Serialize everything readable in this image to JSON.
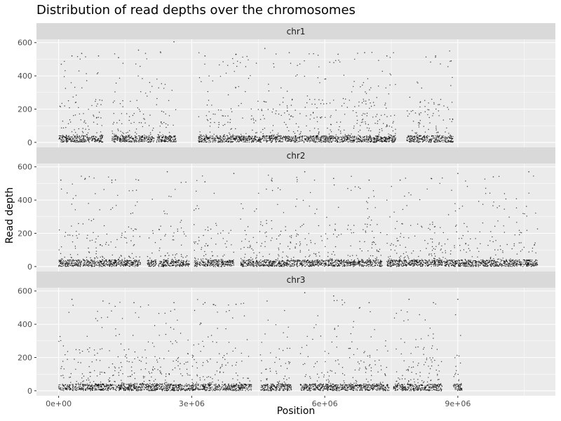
{
  "chart_data": {
    "type": "scatter",
    "title": "Distribution of read depths over the chromosomes",
    "xlabel": "Position",
    "ylabel": "Read depth",
    "xlim": [
      -500000,
      11200000
    ],
    "ylim": [
      -30,
      620
    ],
    "x_ticks": [
      0,
      3000000,
      6000000,
      9000000
    ],
    "x_tick_labels": [
      "0e+00",
      "3e+06",
      "6e+06",
      "9e+06"
    ],
    "y_ticks": [
      0,
      200,
      400,
      600
    ],
    "y_tick_labels": [
      "0",
      "200",
      "400",
      "600"
    ],
    "grid": true,
    "facets": [
      {
        "name": "chr1",
        "covered_regions": [
          [
            0,
            1000000
          ],
          [
            1200000,
            2150000
          ],
          [
            2200000,
            2650000
          ],
          [
            3150000,
            7600000
          ],
          [
            7850000,
            8900000
          ]
        ],
        "sample_points": [
          {
            "x": 60000,
            "y": 470
          },
          {
            "x": 300000,
            "y": 520
          },
          {
            "x": 520000,
            "y": 535
          },
          {
            "x": 900000,
            "y": 520
          },
          {
            "x": 1350000,
            "y": 510
          },
          {
            "x": 1800000,
            "y": 555
          },
          {
            "x": 2300000,
            "y": 540
          },
          {
            "x": 2600000,
            "y": 605
          },
          {
            "x": 3300000,
            "y": 520
          },
          {
            "x": 4000000,
            "y": 530
          },
          {
            "x": 4650000,
            "y": 565
          },
          {
            "x": 5200000,
            "y": 540
          },
          {
            "x": 6300000,
            "y": 530
          },
          {
            "x": 6900000,
            "y": 540
          },
          {
            "x": 7400000,
            "y": 520
          },
          {
            "x": 8500000,
            "y": 520
          },
          {
            "x": 8850000,
            "y": 490
          }
        ]
      },
      {
        "name": "chr2",
        "covered_regions": [
          [
            0,
            1850000
          ],
          [
            2000000,
            2200000
          ],
          [
            2250000,
            2950000
          ],
          [
            3050000,
            3950000
          ],
          [
            4100000,
            7300000
          ],
          [
            7400000,
            10800000
          ]
        ],
        "sample_points": [
          {
            "x": 50000,
            "y": 520
          },
          {
            "x": 600000,
            "y": 530
          },
          {
            "x": 1200000,
            "y": 520
          },
          {
            "x": 1800000,
            "y": 520
          },
          {
            "x": 2450000,
            "y": 570
          },
          {
            "x": 3300000,
            "y": 510
          },
          {
            "x": 3950000,
            "y": 560
          },
          {
            "x": 4800000,
            "y": 520
          },
          {
            "x": 5550000,
            "y": 570
          },
          {
            "x": 6200000,
            "y": 530
          },
          {
            "x": 7000000,
            "y": 520
          },
          {
            "x": 7700000,
            "y": 520
          },
          {
            "x": 8400000,
            "y": 530
          },
          {
            "x": 9000000,
            "y": 560
          },
          {
            "x": 9800000,
            "y": 540
          },
          {
            "x": 10600000,
            "y": 570
          }
        ]
      },
      {
        "name": "chr3",
        "covered_regions": [
          [
            0,
            4350000
          ],
          [
            4550000,
            5250000
          ],
          [
            5450000,
            7450000
          ],
          [
            7550000,
            8650000
          ],
          [
            8900000,
            9100000
          ]
        ],
        "sample_points": [
          {
            "x": 300000,
            "y": 550
          },
          {
            "x": 1000000,
            "y": 540
          },
          {
            "x": 1700000,
            "y": 530
          },
          {
            "x": 2600000,
            "y": 530
          },
          {
            "x": 3300000,
            "y": 530
          },
          {
            "x": 4000000,
            "y": 520
          },
          {
            "x": 4700000,
            "y": 540
          },
          {
            "x": 5550000,
            "y": 590
          },
          {
            "x": 6200000,
            "y": 570
          },
          {
            "x": 7000000,
            "y": 530
          },
          {
            "x": 7900000,
            "y": 550
          },
          {
            "x": 8450000,
            "y": 530
          },
          {
            "x": 9000000,
            "y": 550
          }
        ]
      }
    ]
  }
}
